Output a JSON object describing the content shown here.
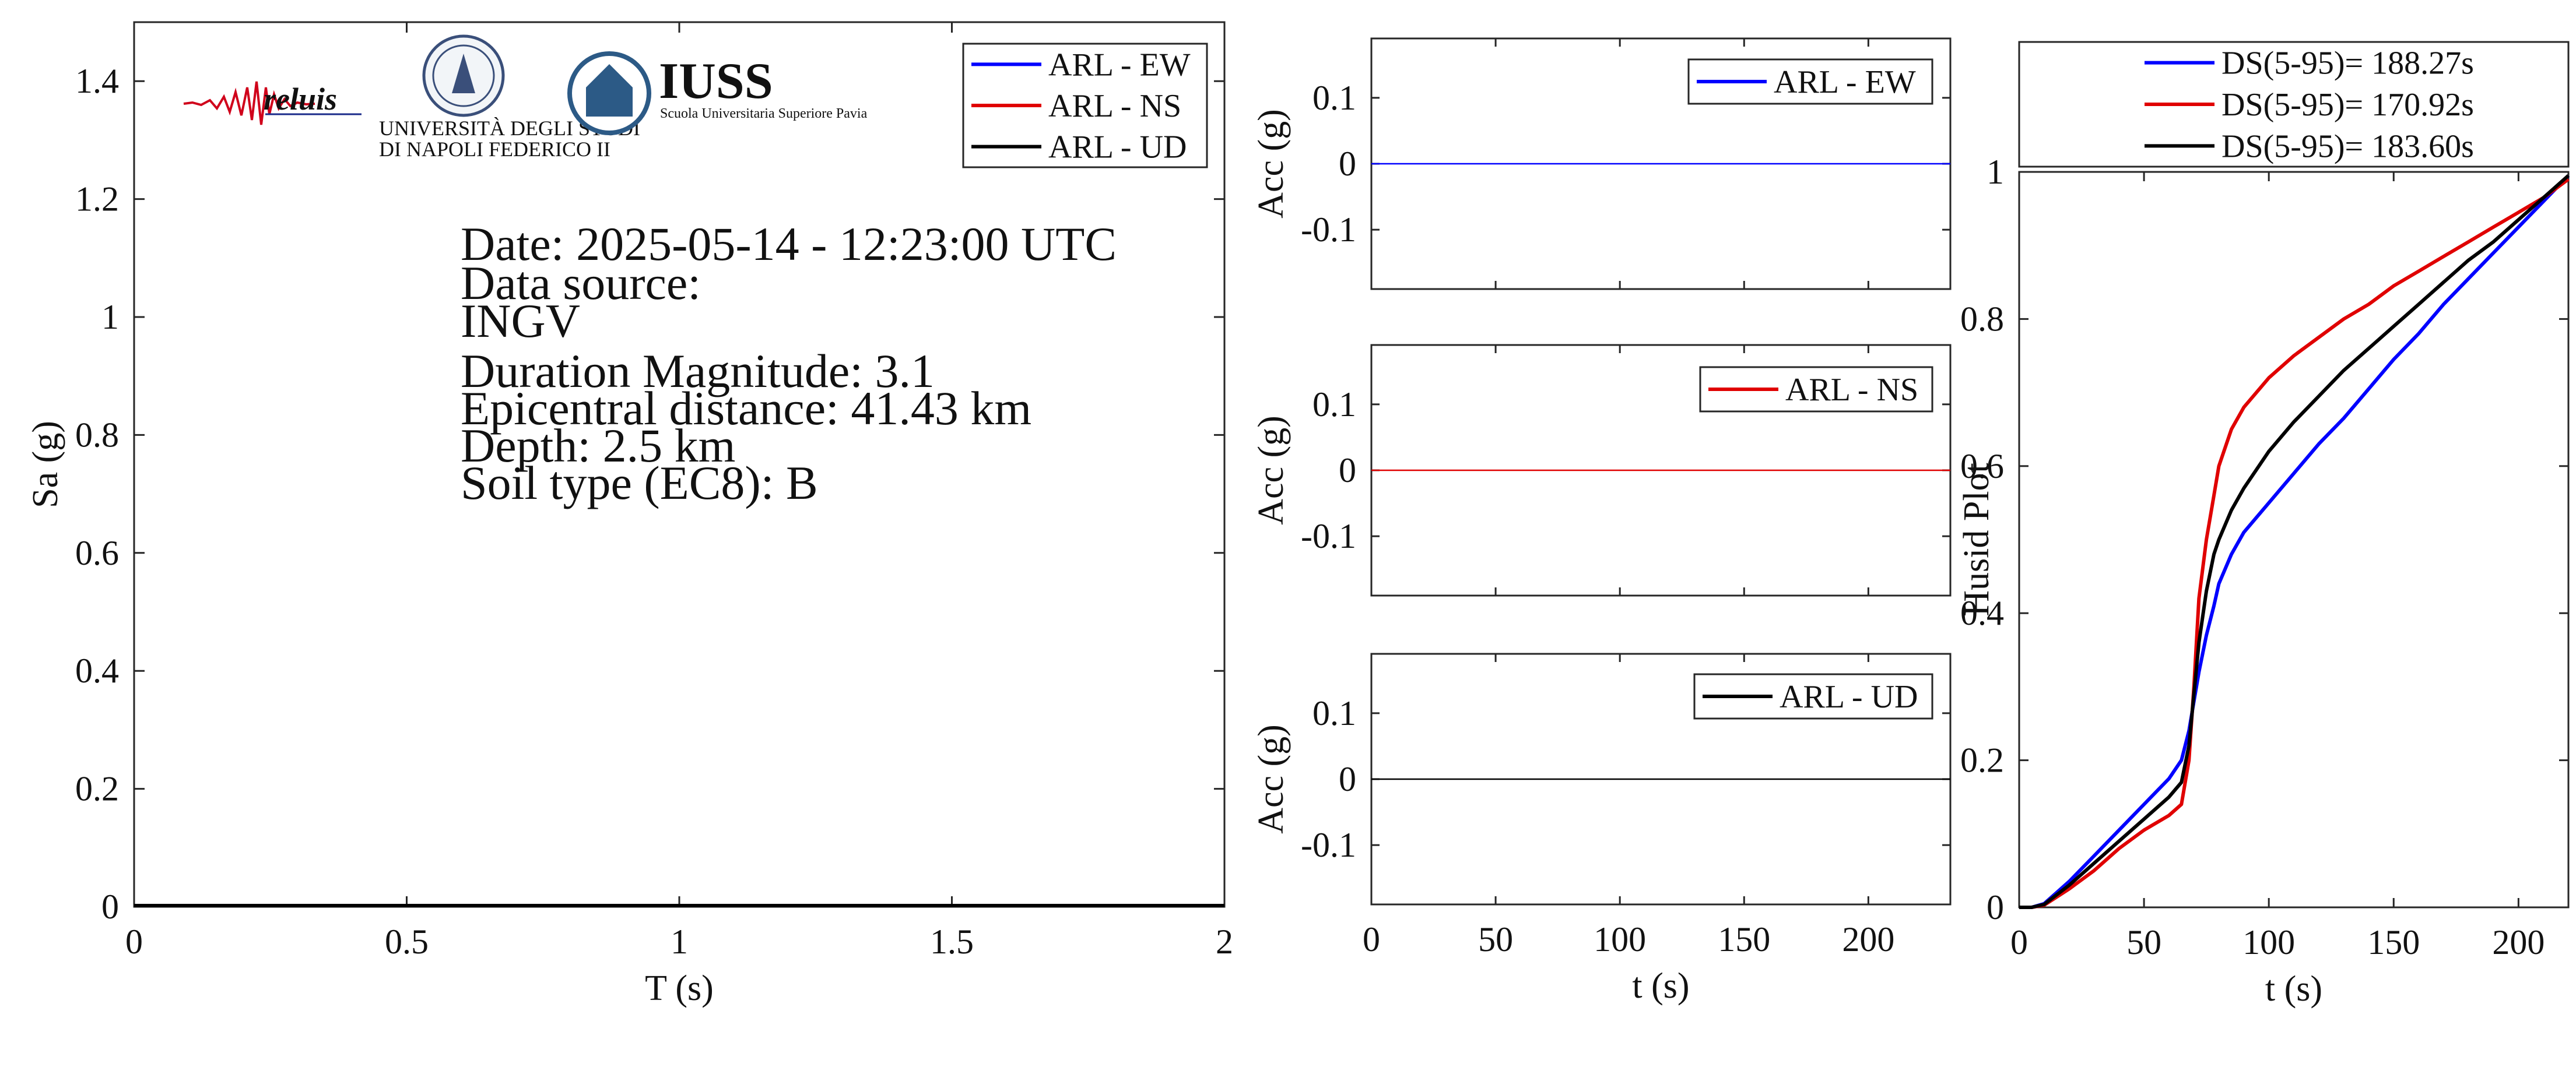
{
  "figure": {
    "colors": {
      "ew": "#0000ff",
      "ns": "#e00000",
      "ud": "#000000"
    },
    "info_text": {
      "date": "Date: 2025-05-14 - 12:23:00 UTC",
      "data_source_label": "Data source:",
      "data_source": "INGV",
      "magnitude": "Duration Magnitude: 3.1",
      "epicentral_distance": "Epicentral distance: 41.43 km",
      "depth": "Depth: 2.5 km",
      "soil_type": "Soil type (EC8): B"
    },
    "logos": {
      "reluis_text": "reluis",
      "unina_line1": "UNIVERSITÀ DEGLI STUDI",
      "unina_line2": "DI NAPOLI FEDERICO II",
      "iuss_name": "IUSS",
      "iuss_sub": "Scuola Universitaria Superiore Pavia"
    }
  },
  "chart_data": [
    {
      "type": "line",
      "id": "spectrum",
      "xlabel": "T (s)",
      "ylabel": "Sa (g)",
      "xlim": [
        0,
        2
      ],
      "ylim": [
        0,
        1.5
      ],
      "xticks": [
        0,
        0.5,
        1,
        1.5,
        2
      ],
      "xtick_labels": [
        "0",
        "0.5",
        "1",
        "1.5",
        "2"
      ],
      "yticks": [
        0,
        0.2,
        0.4,
        0.6,
        0.8,
        1,
        1.2,
        1.4
      ],
      "ytick_labels": [
        "0",
        "0.2",
        "0.4",
        "0.6",
        "0.8",
        "1",
        "1.2",
        "1.4"
      ],
      "legend_position": "top-right",
      "series": [
        {
          "name": "ARL - EW",
          "color": "#0000ff",
          "x": [
            0,
            2
          ],
          "y": [
            0.002,
            0.002
          ]
        },
        {
          "name": "ARL - NS",
          "color": "#e00000",
          "x": [
            0,
            2
          ],
          "y": [
            0.002,
            0.002
          ]
        },
        {
          "name": "ARL - UD",
          "color": "#000000",
          "x": [
            0,
            2
          ],
          "y": [
            0.002,
            0.002
          ]
        }
      ]
    },
    {
      "type": "line",
      "id": "acc-ew",
      "xlabel": "",
      "ylabel": "Acc (g)",
      "xlim": [
        0,
        233
      ],
      "ylim": [
        -0.19,
        0.19
      ],
      "xticks": [
        0,
        50,
        100,
        150,
        200
      ],
      "yticks": [
        0.1,
        0,
        -0.1
      ],
      "ytick_labels": [
        "0.1",
        "0",
        "-0.1"
      ],
      "legend_position": "top-right",
      "series": [
        {
          "name": "ARL - EW",
          "color": "#0000ff",
          "x": [
            0,
            233
          ],
          "y": [
            0,
            0
          ]
        }
      ]
    },
    {
      "type": "line",
      "id": "acc-ns",
      "xlabel": "",
      "ylabel": "Acc (g)",
      "xlim": [
        0,
        233
      ],
      "ylim": [
        -0.19,
        0.19
      ],
      "xticks": [
        0,
        50,
        100,
        150,
        200
      ],
      "yticks": [
        0.1,
        0,
        -0.1
      ],
      "ytick_labels": [
        "0.1",
        "0",
        "-0.1"
      ],
      "legend_position": "top-right",
      "series": [
        {
          "name": "ARL - NS",
          "color": "#e00000",
          "x": [
            0,
            233
          ],
          "y": [
            0,
            0
          ]
        }
      ]
    },
    {
      "type": "line",
      "id": "acc-ud",
      "xlabel": "t (s)",
      "ylabel": "Acc (g)",
      "xlim": [
        0,
        233
      ],
      "ylim": [
        -0.19,
        0.19
      ],
      "xticks": [
        0,
        50,
        100,
        150,
        200
      ],
      "xtick_labels": [
        "0",
        "50",
        "100",
        "150",
        "200"
      ],
      "yticks": [
        0.1,
        0,
        -0.1
      ],
      "ytick_labels": [
        "0.1",
        "0",
        "-0.1"
      ],
      "legend_position": "top-right",
      "series": [
        {
          "name": "ARL - UD",
          "color": "#000000",
          "x": [
            0,
            233
          ],
          "y": [
            0,
            0
          ]
        }
      ]
    },
    {
      "type": "line",
      "id": "husid",
      "xlabel": "t (s)",
      "ylabel": "Husid Plot",
      "xlim": [
        0,
        220
      ],
      "ylim": [
        0,
        1
      ],
      "xticks": [
        0,
        50,
        100,
        150,
        200
      ],
      "xtick_labels": [
        "0",
        "50",
        "100",
        "150",
        "200"
      ],
      "yticks": [
        0,
        0.2,
        0.4,
        0.6,
        0.8,
        1
      ],
      "ytick_labels": [
        "0",
        "0.2",
        "0.4",
        "0.6",
        "0.8",
        "1"
      ],
      "legend_position": "above",
      "series": [
        {
          "name": "DS(5-95)= 188.27s",
          "color": "#0000ff",
          "x": [
            0,
            5,
            10,
            20,
            30,
            40,
            50,
            60,
            65,
            68,
            70,
            72,
            75,
            78,
            80,
            85,
            90,
            100,
            110,
            120,
            130,
            140,
            150,
            160,
            170,
            180,
            190,
            200,
            210,
            220
          ],
          "y": [
            0,
            0,
            0.005,
            0.035,
            0.07,
            0.105,
            0.14,
            0.175,
            0.2,
            0.24,
            0.28,
            0.32,
            0.37,
            0.41,
            0.44,
            0.48,
            0.51,
            0.55,
            0.59,
            0.63,
            0.665,
            0.705,
            0.745,
            0.78,
            0.82,
            0.855,
            0.89,
            0.925,
            0.96,
            0.995
          ]
        },
        {
          "name": "DS(5-95)= 170.92s",
          "color": "#e00000",
          "x": [
            0,
            5,
            10,
            20,
            30,
            40,
            50,
            60,
            65,
            68,
            70,
            72,
            75,
            78,
            80,
            85,
            90,
            100,
            110,
            120,
            130,
            140,
            150,
            160,
            170,
            180,
            190,
            200,
            210,
            220
          ],
          "y": [
            0,
            0,
            0.003,
            0.025,
            0.05,
            0.08,
            0.105,
            0.125,
            0.14,
            0.2,
            0.3,
            0.42,
            0.5,
            0.56,
            0.6,
            0.65,
            0.68,
            0.72,
            0.75,
            0.775,
            0.8,
            0.82,
            0.845,
            0.865,
            0.885,
            0.905,
            0.925,
            0.945,
            0.965,
            0.99
          ]
        },
        {
          "name": "DS(5-95)= 183.60s",
          "color": "#000000",
          "x": [
            0,
            5,
            10,
            20,
            30,
            40,
            50,
            60,
            65,
            68,
            70,
            72,
            75,
            78,
            80,
            85,
            90,
            100,
            110,
            120,
            130,
            140,
            150,
            160,
            170,
            180,
            190,
            200,
            210,
            220
          ],
          "y": [
            0,
            0,
            0.004,
            0.03,
            0.06,
            0.09,
            0.12,
            0.15,
            0.17,
            0.22,
            0.29,
            0.36,
            0.43,
            0.48,
            0.5,
            0.54,
            0.57,
            0.62,
            0.66,
            0.695,
            0.73,
            0.76,
            0.79,
            0.82,
            0.85,
            0.88,
            0.905,
            0.935,
            0.965,
            0.995
          ]
        }
      ]
    }
  ]
}
